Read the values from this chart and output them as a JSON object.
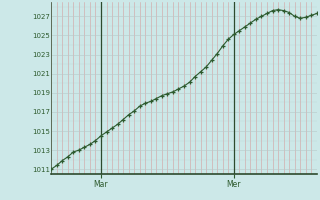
{
  "bg_color": "#cce8e8",
  "plot_bg_color": "#cce8e8",
  "grid_color_v": "#d4a0a0",
  "grid_color_h": "#b8c8c8",
  "line_color": "#2d5a2d",
  "marker_color": "#2d5a2d",
  "vline_color": "#2d4a2d",
  "tick_label_color": "#2d5a2d",
  "bottom_line_color": "#2d4a2d",
  "ylim": [
    1010.5,
    1028.5
  ],
  "yticks": [
    1011,
    1013,
    1015,
    1017,
    1019,
    1021,
    1023,
    1025,
    1027
  ],
  "xlim": [
    0,
    48
  ],
  "x_mar": 9,
  "x_mer": 33,
  "data_x": [
    0,
    1,
    2,
    3,
    4,
    5,
    6,
    7,
    8,
    9,
    10,
    11,
    12,
    13,
    14,
    15,
    16,
    17,
    18,
    19,
    20,
    21,
    22,
    23,
    24,
    25,
    26,
    27,
    28,
    29,
    30,
    31,
    32,
    33,
    34,
    35,
    36,
    37,
    38,
    39,
    40,
    41,
    42,
    43,
    44,
    45,
    46,
    47,
    48
  ],
  "data_y": [
    1011.0,
    1011.4,
    1011.9,
    1012.3,
    1012.8,
    1013.0,
    1013.3,
    1013.6,
    1014.0,
    1014.5,
    1014.9,
    1015.3,
    1015.7,
    1016.2,
    1016.7,
    1017.1,
    1017.6,
    1017.9,
    1018.1,
    1018.4,
    1018.7,
    1018.9,
    1019.1,
    1019.4,
    1019.7,
    1020.1,
    1020.7,
    1021.2,
    1021.7,
    1022.4,
    1023.1,
    1023.9,
    1024.6,
    1025.1,
    1025.5,
    1025.9,
    1026.3,
    1026.7,
    1027.0,
    1027.3,
    1027.6,
    1027.7,
    1027.6,
    1027.4,
    1027.0,
    1026.8,
    1026.9,
    1027.1,
    1027.3
  ]
}
